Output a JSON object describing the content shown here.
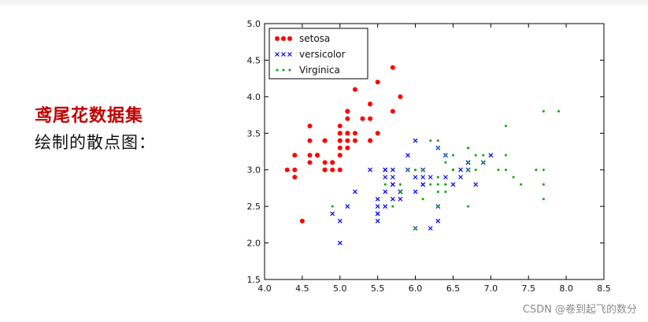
{
  "slide": {
    "heading": "鸢尾花数据集",
    "subheading": "绘制的散点图："
  },
  "watermark": "CSDN @卷到起飞的数分",
  "chart_data": {
    "type": "scatter",
    "xlim": [
      4.0,
      8.5
    ],
    "ylim": [
      1.5,
      5.0
    ],
    "xticks": [
      "4.0",
      "4.5",
      "5.0",
      "5.5",
      "6.0",
      "6.5",
      "7.0",
      "7.5",
      "8.0",
      "8.5"
    ],
    "yticks": [
      "1.5",
      "2.0",
      "2.5",
      "3.0",
      "3.5",
      "4.0",
      "4.5",
      "5.0"
    ],
    "grid": false,
    "legend_position": "top-left",
    "series": [
      {
        "name": "setosa",
        "marker": "circle",
        "color": "#ff0000",
        "points": [
          [
            5.1,
            3.5
          ],
          [
            4.9,
            3.0
          ],
          [
            4.7,
            3.2
          ],
          [
            4.6,
            3.1
          ],
          [
            5.0,
            3.6
          ],
          [
            5.4,
            3.9
          ],
          [
            4.6,
            3.4
          ],
          [
            5.0,
            3.4
          ],
          [
            4.4,
            2.9
          ],
          [
            4.9,
            3.1
          ],
          [
            5.4,
            3.7
          ],
          [
            4.8,
            3.4
          ],
          [
            4.8,
            3.0
          ],
          [
            4.3,
            3.0
          ],
          [
            5.8,
            4.0
          ],
          [
            5.7,
            4.4
          ],
          [
            5.4,
            3.9
          ],
          [
            5.1,
            3.5
          ],
          [
            5.7,
            3.8
          ],
          [
            5.1,
            3.8
          ],
          [
            5.4,
            3.4
          ],
          [
            5.1,
            3.7
          ],
          [
            4.6,
            3.6
          ],
          [
            5.1,
            3.3
          ],
          [
            4.8,
            3.4
          ],
          [
            5.0,
            3.0
          ],
          [
            5.0,
            3.4
          ],
          [
            5.2,
            3.5
          ],
          [
            5.2,
            3.4
          ],
          [
            4.7,
            3.2
          ],
          [
            4.8,
            3.1
          ],
          [
            5.4,
            3.4
          ],
          [
            5.2,
            4.1
          ],
          [
            5.5,
            4.2
          ],
          [
            4.9,
            3.1
          ],
          [
            5.0,
            3.2
          ],
          [
            5.5,
            3.5
          ],
          [
            4.4,
            3.0
          ],
          [
            5.1,
            3.4
          ],
          [
            5.0,
            3.5
          ],
          [
            4.5,
            2.3
          ],
          [
            4.4,
            3.2
          ],
          [
            5.0,
            3.5
          ],
          [
            5.1,
            3.8
          ],
          [
            4.8,
            3.0
          ],
          [
            5.1,
            3.8
          ],
          [
            4.6,
            3.2
          ],
          [
            5.3,
            3.7
          ],
          [
            5.0,
            3.3
          ]
        ]
      },
      {
        "name": "versicolor",
        "marker": "x",
        "color": "#0000ff",
        "points": [
          [
            7.0,
            3.2
          ],
          [
            6.4,
            3.2
          ],
          [
            6.9,
            3.1
          ],
          [
            5.5,
            2.3
          ],
          [
            6.5,
            2.8
          ],
          [
            5.7,
            2.8
          ],
          [
            6.3,
            3.3
          ],
          [
            4.9,
            2.4
          ],
          [
            6.6,
            2.9
          ],
          [
            5.2,
            2.7
          ],
          [
            5.0,
            2.0
          ],
          [
            5.9,
            3.0
          ],
          [
            6.0,
            2.2
          ],
          [
            6.1,
            2.9
          ],
          [
            5.6,
            2.9
          ],
          [
            6.7,
            3.1
          ],
          [
            5.6,
            3.0
          ],
          [
            5.8,
            2.7
          ],
          [
            6.2,
            2.2
          ],
          [
            5.6,
            2.5
          ],
          [
            5.9,
            3.2
          ],
          [
            6.1,
            2.8
          ],
          [
            6.3,
            2.5
          ],
          [
            6.1,
            2.8
          ],
          [
            6.4,
            2.9
          ],
          [
            6.6,
            3.0
          ],
          [
            6.8,
            2.8
          ],
          [
            6.7,
            3.0
          ],
          [
            6.0,
            2.9
          ],
          [
            5.7,
            2.6
          ],
          [
            5.5,
            2.4
          ],
          [
            5.5,
            2.4
          ],
          [
            5.8,
            2.7
          ],
          [
            6.0,
            2.7
          ],
          [
            5.4,
            3.0
          ],
          [
            6.0,
            3.4
          ],
          [
            6.7,
            3.1
          ],
          [
            6.3,
            2.3
          ],
          [
            5.6,
            3.0
          ],
          [
            5.5,
            2.5
          ],
          [
            5.5,
            2.6
          ],
          [
            6.1,
            3.0
          ],
          [
            5.8,
            2.6
          ],
          [
            5.0,
            2.3
          ],
          [
            5.6,
            2.7
          ],
          [
            5.7,
            3.0
          ],
          [
            5.7,
            2.9
          ],
          [
            6.2,
            2.9
          ],
          [
            5.1,
            2.5
          ],
          [
            5.7,
            2.8
          ]
        ]
      },
      {
        "name": "Virginica",
        "marker": "dot",
        "color": "#00aa00",
        "points": [
          [
            6.3,
            3.3
          ],
          [
            5.8,
            2.7
          ],
          [
            7.1,
            3.0
          ],
          [
            6.3,
            2.9
          ],
          [
            6.5,
            3.0
          ],
          [
            7.6,
            3.0
          ],
          [
            4.9,
            2.5
          ],
          [
            7.3,
            2.9
          ],
          [
            6.7,
            2.5
          ],
          [
            7.2,
            3.6
          ],
          [
            6.5,
            3.2
          ],
          [
            6.4,
            2.7
          ],
          [
            6.8,
            3.0
          ],
          [
            5.7,
            2.5
          ],
          [
            5.8,
            2.8
          ],
          [
            6.4,
            3.2
          ],
          [
            6.5,
            3.0
          ],
          [
            7.7,
            3.8
          ],
          [
            7.7,
            2.6
          ],
          [
            6.0,
            2.2
          ],
          [
            6.9,
            3.2
          ],
          [
            5.6,
            2.8
          ],
          [
            7.7,
            2.8
          ],
          [
            6.3,
            2.7
          ],
          [
            6.7,
            3.3
          ],
          [
            7.2,
            3.2
          ],
          [
            6.2,
            2.8
          ],
          [
            6.1,
            3.0
          ],
          [
            6.4,
            2.8
          ],
          [
            7.2,
            3.0
          ],
          [
            7.4,
            2.8
          ],
          [
            7.9,
            3.8
          ],
          [
            6.4,
            2.8
          ],
          [
            6.3,
            2.8
          ],
          [
            6.1,
            2.6
          ],
          [
            7.7,
            3.0
          ],
          [
            6.3,
            3.4
          ],
          [
            6.4,
            3.1
          ],
          [
            6.0,
            3.0
          ],
          [
            6.9,
            3.1
          ],
          [
            6.7,
            3.1
          ],
          [
            6.9,
            3.1
          ],
          [
            5.8,
            2.7
          ],
          [
            6.8,
            3.2
          ],
          [
            6.7,
            3.3
          ],
          [
            6.7,
            3.0
          ],
          [
            6.3,
            2.5
          ],
          [
            6.5,
            3.0
          ],
          [
            6.2,
            3.4
          ],
          [
            5.9,
            3.0
          ]
        ]
      }
    ]
  }
}
